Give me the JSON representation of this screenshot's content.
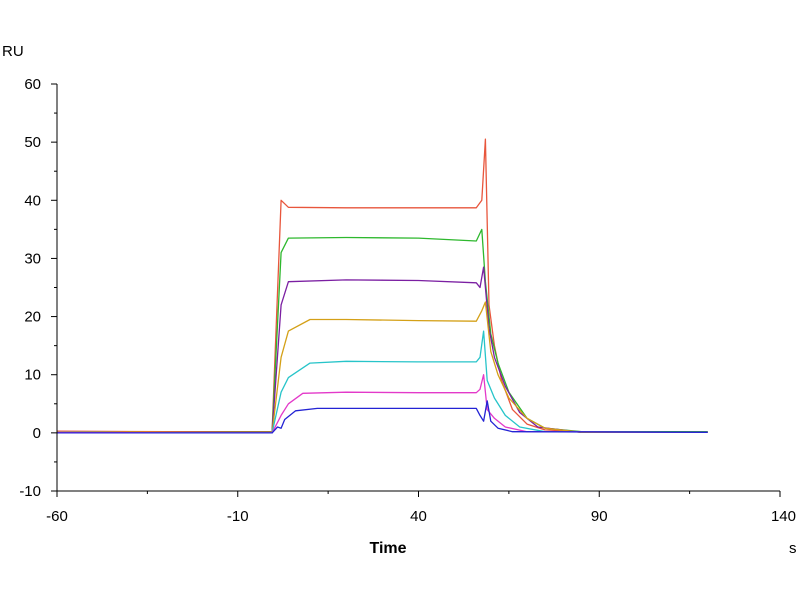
{
  "chart_data": {
    "type": "line",
    "xlabel": "Time",
    "x_unit": "s",
    "y_unit": "RU",
    "xlim": [
      -60,
      140
    ],
    "ylim": [
      -10,
      60
    ],
    "x_ticks": [
      "-60",
      "-10",
      "40",
      "90",
      "140"
    ],
    "y_ticks": [
      "60",
      "50",
      "40",
      "30",
      "20",
      "10",
      "0",
      "-10"
    ],
    "grid": false,
    "legend": "none",
    "series": [
      {
        "color": "#e8563c",
        "points": [
          [
            -60,
            0.3
          ],
          [
            -30,
            0.2
          ],
          [
            -0.5,
            0.2
          ],
          [
            2,
            40
          ],
          [
            4,
            38.8
          ],
          [
            20,
            38.7
          ],
          [
            40,
            38.7
          ],
          [
            56,
            38.7
          ],
          [
            57.5,
            40
          ],
          [
            58.5,
            50.5
          ],
          [
            59.5,
            22
          ],
          [
            61,
            15
          ],
          [
            63,
            9
          ],
          [
            66,
            4
          ],
          [
            70,
            1.5
          ],
          [
            75,
            0.5
          ],
          [
            85,
            0.2
          ],
          [
            120,
            0.2
          ]
        ]
      },
      {
        "color": "#2eb82e",
        "points": [
          [
            -60,
            0.2
          ],
          [
            -30,
            0.1
          ],
          [
            -0.5,
            0.1
          ],
          [
            2,
            31
          ],
          [
            4,
            33.5
          ],
          [
            20,
            33.6
          ],
          [
            40,
            33.5
          ],
          [
            56,
            33
          ],
          [
            57.5,
            35
          ],
          [
            58.5,
            26
          ],
          [
            60,
            17
          ],
          [
            62,
            12
          ],
          [
            65,
            7
          ],
          [
            70,
            2.5
          ],
          [
            75,
            0.8
          ],
          [
            85,
            0.2
          ],
          [
            120,
            0.2
          ]
        ]
      },
      {
        "color": "#7b1fa2",
        "points": [
          [
            -60,
            0.1
          ],
          [
            -30,
            0.1
          ],
          [
            -0.5,
            0
          ],
          [
            2,
            22
          ],
          [
            4,
            26
          ],
          [
            20,
            26.3
          ],
          [
            40,
            26.2
          ],
          [
            56,
            25.8
          ],
          [
            57,
            25
          ],
          [
            58,
            28.5
          ],
          [
            59.5,
            18
          ],
          [
            61,
            13
          ],
          [
            64,
            8
          ],
          [
            68,
            3.5
          ],
          [
            73,
            1
          ],
          [
            85,
            0.1
          ],
          [
            120,
            0.1
          ]
        ]
      },
      {
        "color": "#d4a017",
        "points": [
          [
            -60,
            0.2
          ],
          [
            -30,
            0.1
          ],
          [
            -0.5,
            0
          ],
          [
            2,
            13
          ],
          [
            4,
            17.5
          ],
          [
            10,
            19.5
          ],
          [
            20,
            19.5
          ],
          [
            40,
            19.3
          ],
          [
            56,
            19.2
          ],
          [
            57.5,
            21
          ],
          [
            58.5,
            22.5
          ],
          [
            60,
            14
          ],
          [
            62,
            10
          ],
          [
            65,
            6
          ],
          [
            70,
            2.5
          ],
          [
            75,
            0.8
          ],
          [
            85,
            0.1
          ],
          [
            120,
            0.1
          ]
        ]
      },
      {
        "color": "#27c4c9",
        "points": [
          [
            -60,
            0.1
          ],
          [
            -30,
            0
          ],
          [
            -0.5,
            0
          ],
          [
            2,
            7
          ],
          [
            4,
            9.5
          ],
          [
            10,
            12
          ],
          [
            20,
            12.3
          ],
          [
            40,
            12.2
          ],
          [
            56,
            12.2
          ],
          [
            57,
            13
          ],
          [
            58,
            17.5
          ],
          [
            59,
            9
          ],
          [
            61,
            6
          ],
          [
            64,
            3
          ],
          [
            68,
            1
          ],
          [
            75,
            0.2
          ],
          [
            120,
            0.1
          ]
        ]
      },
      {
        "color": "#e339c9",
        "points": [
          [
            -60,
            0.1
          ],
          [
            -30,
            0
          ],
          [
            -0.5,
            0
          ],
          [
            2,
            3
          ],
          [
            4,
            5
          ],
          [
            8,
            6.8
          ],
          [
            20,
            7
          ],
          [
            40,
            6.9
          ],
          [
            56,
            6.9
          ],
          [
            57,
            7.5
          ],
          [
            58,
            10
          ],
          [
            59,
            4
          ],
          [
            61,
            2.5
          ],
          [
            64,
            1
          ],
          [
            70,
            0.2
          ],
          [
            120,
            0.1
          ]
        ]
      },
      {
        "color": "#2323d4",
        "points": [
          [
            -60,
            0
          ],
          [
            -30,
            0
          ],
          [
            -0.5,
            0
          ],
          [
            1,
            1
          ],
          [
            2,
            0.8
          ],
          [
            3,
            2.3
          ],
          [
            6,
            3.8
          ],
          [
            12,
            4.2
          ],
          [
            40,
            4.2
          ],
          [
            56,
            4.2
          ],
          [
            57,
            3
          ],
          [
            58,
            2
          ],
          [
            59,
            5.5
          ],
          [
            60,
            2
          ],
          [
            62,
            0.8
          ],
          [
            66,
            0.2
          ],
          [
            120,
            0.1
          ]
        ]
      }
    ]
  }
}
